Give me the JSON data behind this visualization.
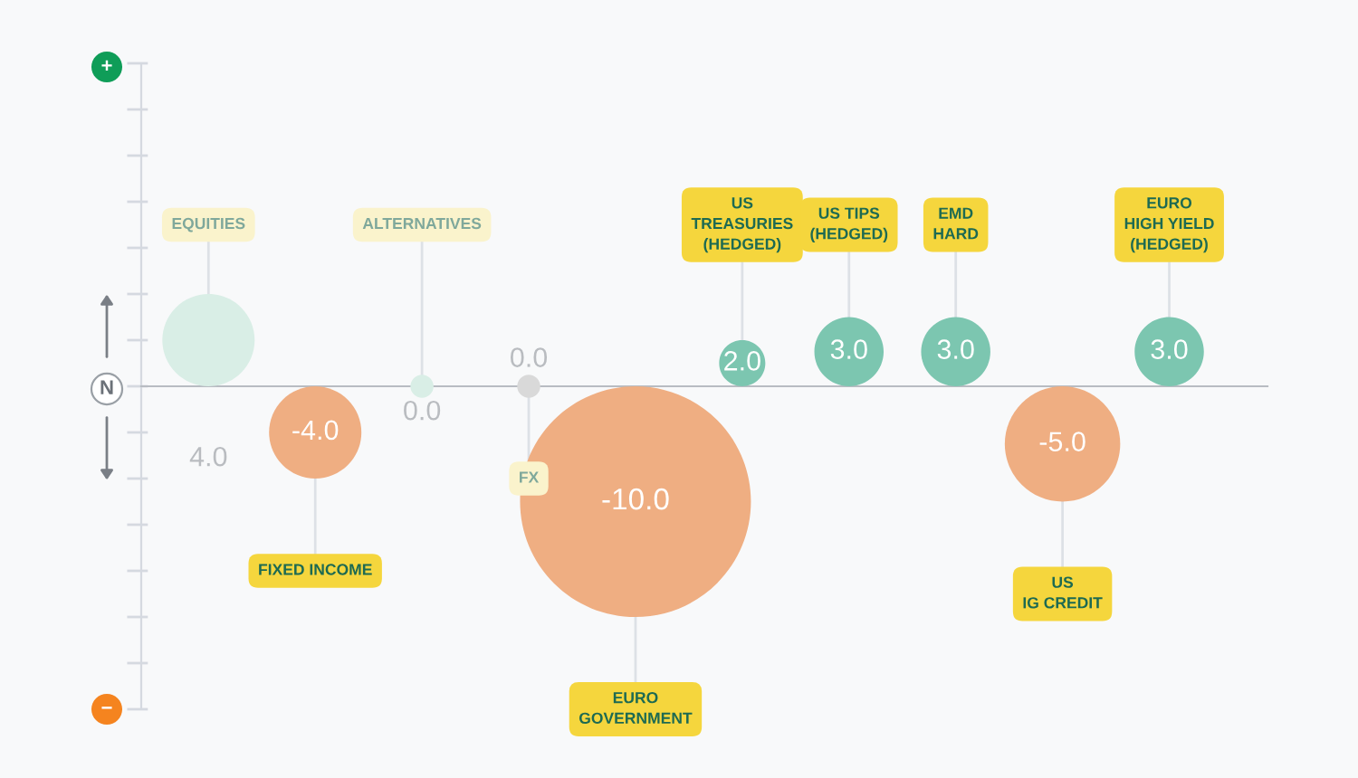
{
  "chart_data": {
    "type": "bubble",
    "categories": [
      "EQUITIES",
      "FIXED INCOME",
      "ALTERNATIVES",
      "FX",
      "EURO\nGOVERNMENT",
      "US\nTREASURIES\n(HEDGED)",
      "US TIPS\n(HEDGED)",
      "EMD\nHARD",
      "US\nIG CREDIT",
      "EURO\nHIGH YIELD\n(HEDGED)"
    ],
    "values": [
      4,
      -4,
      0,
      0,
      -10,
      2,
      3,
      3,
      -5,
      3
    ],
    "sizes": [
      0.16,
      0.16,
      0.01,
      0.01,
      1,
      0.04,
      0.09,
      0.09,
      0.25,
      0.09
    ],
    "colors": [
      "#d9eee6",
      "#efae82",
      "#d9eee6",
      "#d9d9d9",
      "#efae82",
      "#7cc6b0",
      "#7cc6b0",
      "#7cc6b0",
      "#efae82",
      "#7cc6b0"
    ],
    "value_labels": [
      "4.0",
      "-4.0",
      "0.0",
      "0.0",
      "-10.0",
      "2.0",
      "3.0",
      "3.0",
      "-5.0",
      "3.0"
    ],
    "ylim": [
      -28,
      28
    ],
    "annotations": [
      "+",
      "N",
      "−"
    ]
  }
}
